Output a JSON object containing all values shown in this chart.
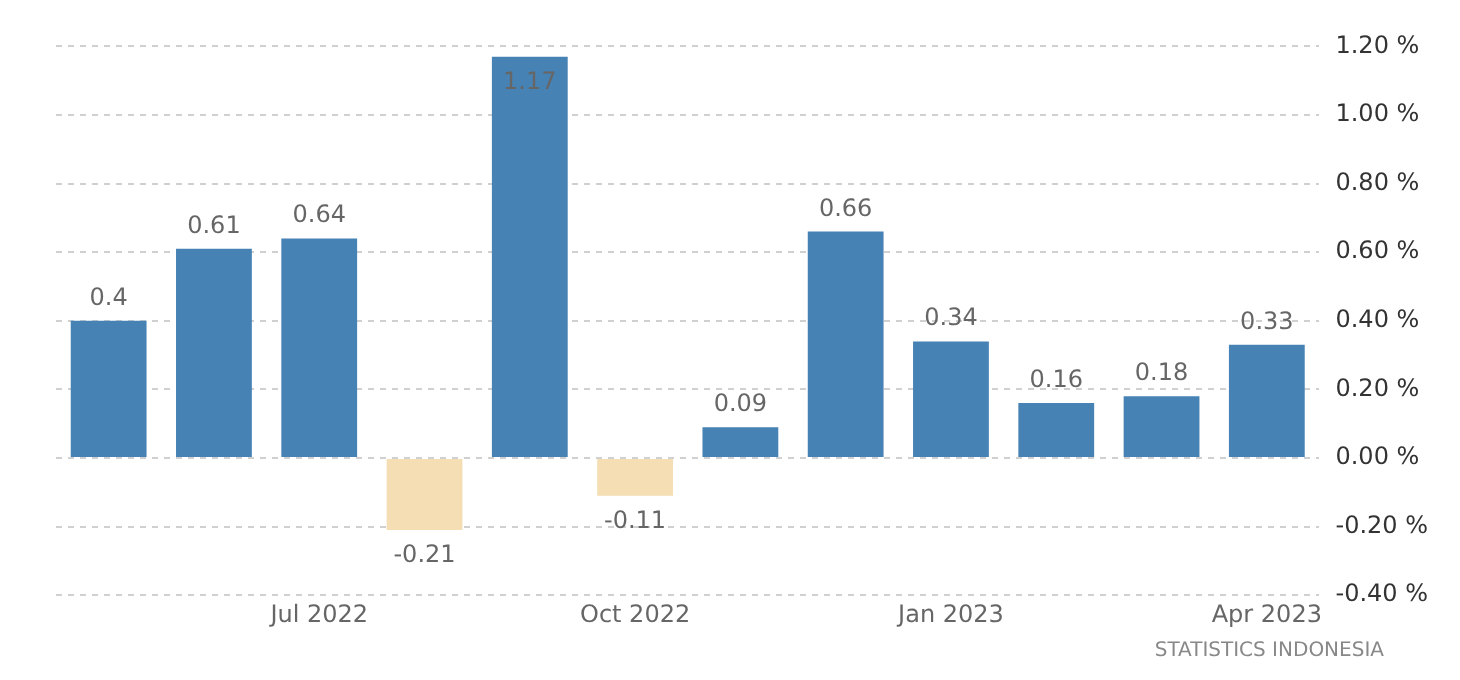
{
  "chart_data": {
    "type": "bar",
    "categories": [
      null,
      null,
      "Jul 2022",
      null,
      null,
      "Oct 2022",
      null,
      null,
      "Jan 2023",
      null,
      null,
      "Apr 2023"
    ],
    "values": [
      0.4,
      0.61,
      0.64,
      -0.21,
      1.17,
      -0.11,
      0.09,
      0.66,
      0.34,
      0.16,
      0.18,
      0.33
    ],
    "colors": [
      "#4682b4",
      "#4682b4",
      "#4682b4",
      "#f5deb3",
      "#4682b4",
      "#f5deb3",
      "#4682b4",
      "#4682b4",
      "#4682b4",
      "#4682b4",
      "#4682b4",
      "#4682b4"
    ],
    "ylim": [
      -0.4,
      1.2
    ],
    "yticks": [
      {
        "value": -0.4,
        "label": "-0.40 %"
      },
      {
        "value": -0.2,
        "label": "-0.20 %"
      },
      {
        "value": 0,
        "label": "0.00 %"
      },
      {
        "value": 0.2,
        "label": "0.20 %"
      },
      {
        "value": 0.4,
        "label": "0.40 %"
      },
      {
        "value": 0.6,
        "label": "0.60 %"
      },
      {
        "value": 0.8,
        "label": "0.80 %"
      },
      {
        "value": 1,
        "label": "1.00 %"
      },
      {
        "value": 1.2,
        "label": "1.20 %"
      }
    ],
    "grid": "y",
    "data_labels": true,
    "annotations": [
      "STATISTICS INDONESIA"
    ]
  }
}
